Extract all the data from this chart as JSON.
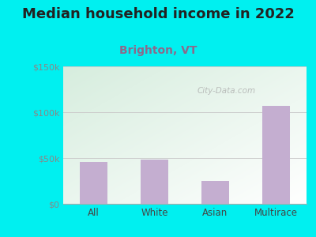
{
  "title": "Median household income in 2022",
  "subtitle": "Brighton, VT",
  "categories": [
    "All",
    "White",
    "Asian",
    "Multirace"
  ],
  "values": [
    46000,
    48000,
    25000,
    107000
  ],
  "bar_color": "#c4aed0",
  "ylim": [
    0,
    150000
  ],
  "yticks": [
    0,
    50000,
    100000,
    150000
  ],
  "ytick_labels": [
    "$0",
    "$50k",
    "$100k",
    "$150k"
  ],
  "title_fontsize": 13,
  "subtitle_fontsize": 10,
  "title_color": "#222222",
  "subtitle_color": "#8b6a8b",
  "bg_outer": "#00f0f0",
  "watermark": "City-Data.com",
  "xlabel_color": "#444444",
  "tick_color": "#888888",
  "grid_color": "#cccccc",
  "plot_bg_topleft": "#d5eedd",
  "plot_bg_white": "#ffffff"
}
